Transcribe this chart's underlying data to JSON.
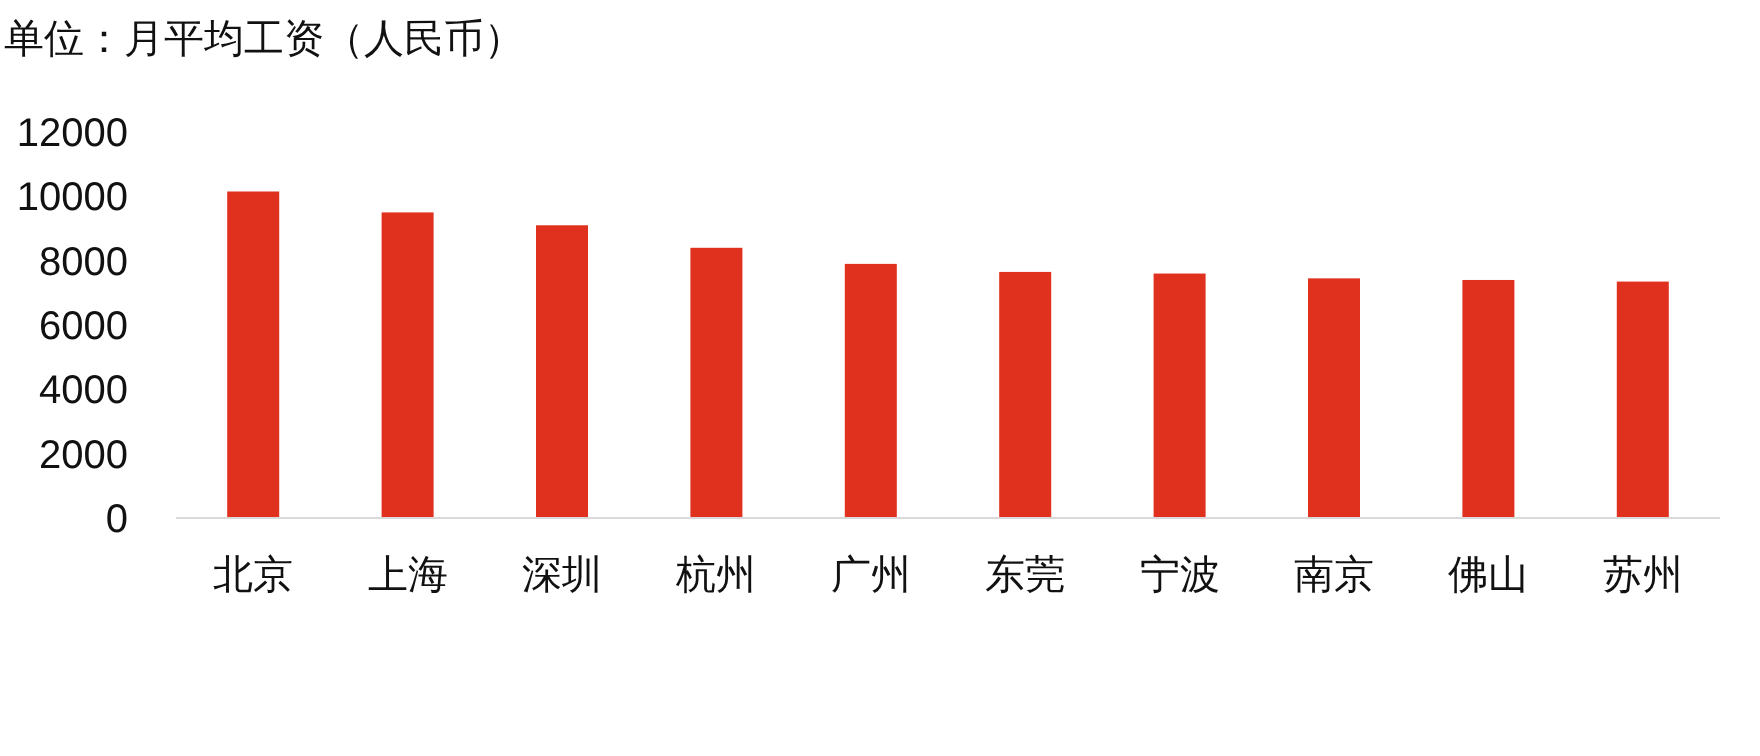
{
  "chart_data": {
    "type": "bar",
    "title": "单位：月平均工资（人民币）",
    "categories": [
      "北京",
      "上海",
      "深圳",
      "杭州",
      "广州",
      "东莞",
      "宁波",
      "南京",
      "佛山",
      "苏州"
    ],
    "values": [
      10150,
      9500,
      9100,
      8400,
      7900,
      7650,
      7600,
      7450,
      7400,
      7350
    ],
    "color": "#e0301e",
    "ylim": [
      0,
      12000
    ],
    "yticks": [
      0,
      2000,
      4000,
      6000,
      8000,
      10000,
      12000
    ],
    "grid": false
  }
}
